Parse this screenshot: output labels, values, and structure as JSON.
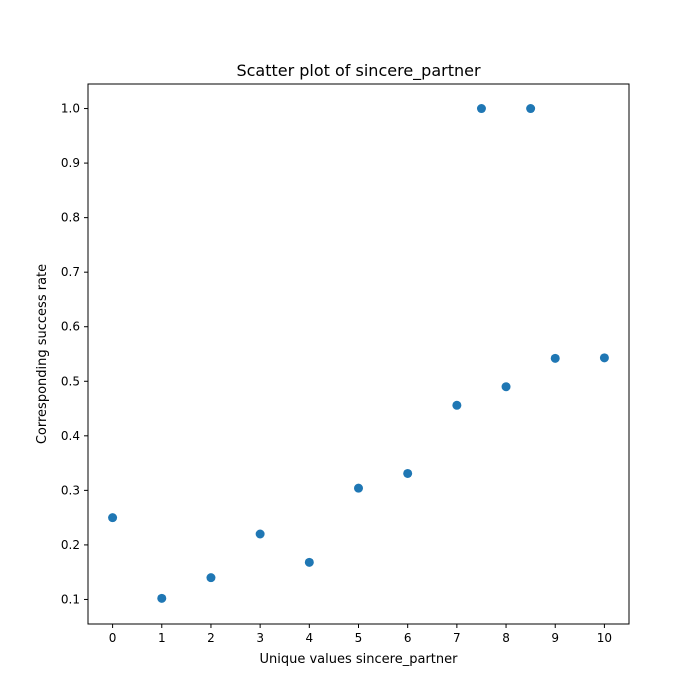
{
  "chart_data": {
    "type": "scatter",
    "title": "Scatter plot of sincere_partner",
    "xlabel": "Unique values sincere_partner",
    "ylabel": "Corresponding success rate",
    "xlim": [
      -0.5,
      10.5
    ],
    "ylim": [
      0.055,
      1.045
    ],
    "xticks": [
      0,
      1,
      2,
      3,
      4,
      5,
      6,
      7,
      8,
      9,
      10
    ],
    "yticks": [
      0.1,
      0.2,
      0.3,
      0.4,
      0.5,
      0.6,
      0.7,
      0.8,
      0.9,
      1.0
    ],
    "grid": false,
    "marker_color": "#1f77b4",
    "points": [
      {
        "x": 0,
        "y": 0.25
      },
      {
        "x": 1,
        "y": 0.102
      },
      {
        "x": 2,
        "y": 0.14
      },
      {
        "x": 3,
        "y": 0.22
      },
      {
        "x": 4,
        "y": 0.168
      },
      {
        "x": 5,
        "y": 0.304
      },
      {
        "x": 6,
        "y": 0.331
      },
      {
        "x": 7,
        "y": 0.456
      },
      {
        "x": 7.5,
        "y": 1.0
      },
      {
        "x": 8,
        "y": 0.49
      },
      {
        "x": 8.5,
        "y": 1.0
      },
      {
        "x": 9,
        "y": 0.542
      },
      {
        "x": 10,
        "y": 0.543
      }
    ]
  }
}
